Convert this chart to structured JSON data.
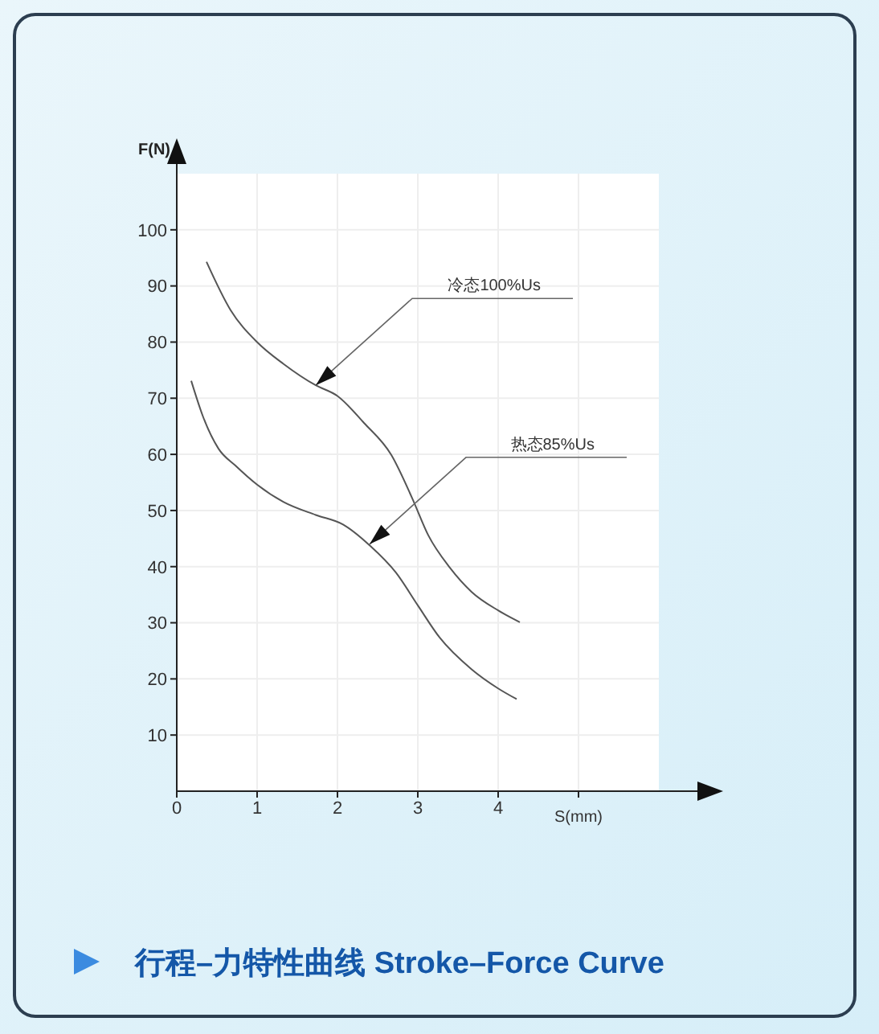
{
  "chart_data": {
    "type": "line",
    "title": "行程–力特性曲线 Stroke–Force Curve",
    "xlabel": "S(mm)",
    "ylabel": "F(N)",
    "xlim": [
      0,
      6
    ],
    "xticks": [
      0,
      1,
      2,
      3,
      4,
      {
        "value": 5,
        "label": null
      }
    ],
    "ylim": [
      0,
      110
    ],
    "yticks": [
      10,
      20,
      30,
      40,
      50,
      60,
      70,
      80,
      90,
      100
    ],
    "grid": true,
    "marker": "none",
    "line_style": "solid",
    "annotations": [
      {
        "text": "冷态100%Us",
        "x": 1.73,
        "y": 72.3
      },
      {
        "text": "热态85%Us",
        "x": 2.4,
        "y": 44
      }
    ],
    "series": [
      {
        "color": "#555555",
        "x": [
          0.37,
          0.67,
          1.0,
          1.33,
          1.73,
          2.0,
          2.33,
          2.67,
          2.93,
          3.13,
          3.4,
          3.67,
          4.0,
          4.27
        ],
        "values": [
          94.3,
          85.7,
          80,
          76.1,
          72.3,
          70.4,
          65.6,
          59.9,
          52.2,
          45.6,
          39.8,
          35.5,
          32.2,
          30.1
        ]
      },
      {
        "color": "#555555",
        "x": [
          0.18,
          0.33,
          0.52,
          0.73,
          1.0,
          1.33,
          1.73,
          2.07,
          2.4,
          2.73,
          3.0,
          3.27,
          3.67,
          4.0,
          4.23
        ],
        "values": [
          73.1,
          66.6,
          61.0,
          58.0,
          54.6,
          51.5,
          49.2,
          47.5,
          43.8,
          38.9,
          33.1,
          27.4,
          21.7,
          18.3,
          16.4
        ]
      }
    ]
  }
}
